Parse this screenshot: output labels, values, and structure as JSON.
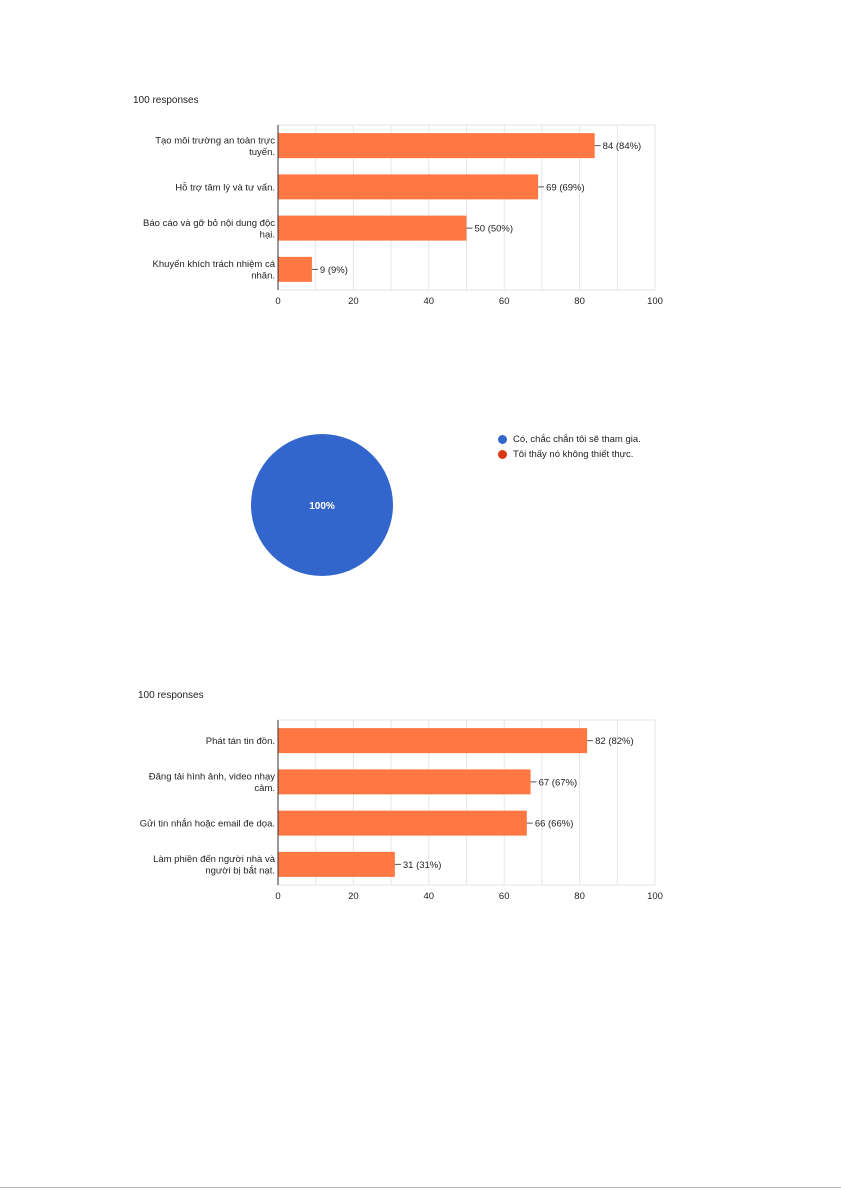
{
  "charts": {
    "q1": {
      "responses_label": "100 responses"
    },
    "q3": {
      "responses_label": "100 responses"
    }
  },
  "colors": {
    "bar": "#ff7843",
    "pie_blue": "#3366cc",
    "pie_red": "#dc3912",
    "grid": "#e6e6e6",
    "axis": "#333333"
  },
  "chart_data": [
    {
      "type": "bar",
      "orientation": "horizontal",
      "responses": "100 responses",
      "categories": [
        [
          "Tạo môi trường an toàn trực",
          "tuyến."
        ],
        [
          "Hỗ trợ tâm lý và tư vấn."
        ],
        [
          "Báo cáo và gỡ bỏ nội dung độc",
          "hại."
        ],
        [
          "Khuyến khích trách nhiệm cá",
          "nhân."
        ]
      ],
      "values": [
        84,
        69,
        50,
        9
      ],
      "data_labels": [
        "84 (84%)",
        "69 (69%)",
        "50 (50%)",
        "9 (9%)"
      ],
      "xlim": [
        0,
        100
      ],
      "xticks": [
        "0",
        "20",
        "40",
        "60",
        "80",
        "100"
      ],
      "grid": true,
      "color": "#ff7843"
    },
    {
      "type": "pie",
      "slices": [
        {
          "label": "Có, chắc chắn tôi sẽ tham gia.",
          "value": 100,
          "color": "#3366cc"
        },
        {
          "label": "Tôi thấy nó không thiết thực.",
          "value": 0,
          "color": "#dc3912"
        }
      ],
      "slice_label": "100%",
      "legend_position": "right"
    },
    {
      "type": "bar",
      "orientation": "horizontal",
      "responses": "100 responses",
      "categories": [
        [
          "Phát tán tin đồn."
        ],
        [
          "Đăng tải hình ảnh, video nhạy",
          "cảm."
        ],
        [
          "Gửi tin nhắn hoặc email đe dọa."
        ],
        [
          "Làm phiền đến người nhà và",
          "người bị bắt nạt."
        ]
      ],
      "values": [
        82,
        67,
        66,
        31
      ],
      "data_labels": [
        "82 (82%)",
        "67 (67%)",
        "66 (66%)",
        "31 (31%)"
      ],
      "xlim": [
        0,
        100
      ],
      "xticks": [
        "0",
        "20",
        "40",
        "60",
        "80",
        "100"
      ],
      "grid": true,
      "color": "#ff7843"
    }
  ]
}
